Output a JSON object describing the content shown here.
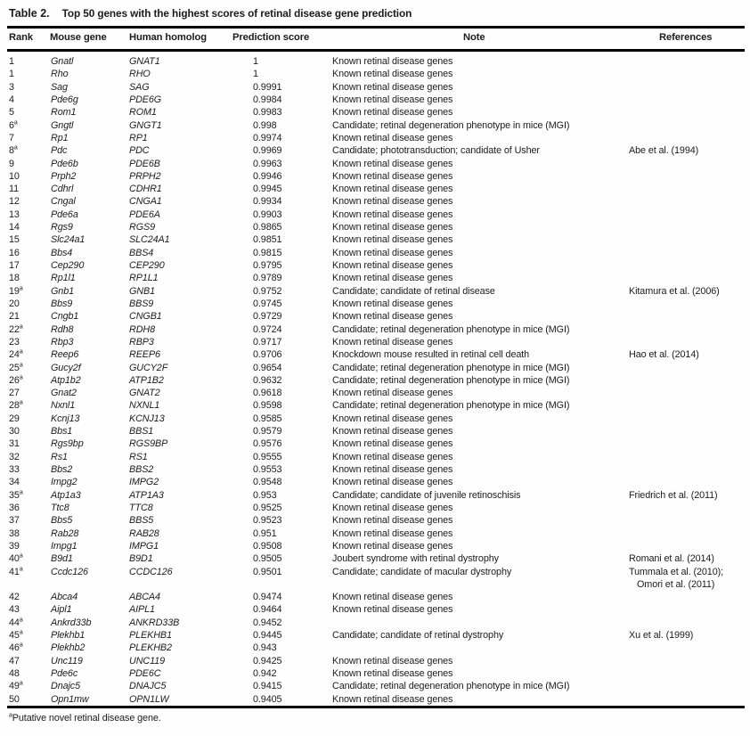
{
  "table": {
    "title_label": "Table 2.",
    "title_caption": "Top 50 genes with the highest scores of retinal disease gene prediction",
    "sup_marker": "a",
    "columns": {
      "rank": "Rank",
      "mouse": "Mouse gene",
      "human": "Human homolog",
      "score": "Prediction score",
      "note": "Note",
      "refs": "References"
    },
    "rows": [
      {
        "rank": "1",
        "sup": false,
        "mouse": "Gnatl",
        "human": "GNAT1",
        "score": "1",
        "note": "Known retinal disease genes",
        "refs": []
      },
      {
        "rank": "1",
        "sup": false,
        "mouse": "Rho",
        "human": "RHO",
        "score": "1",
        "note": "Known retinal disease genes",
        "refs": []
      },
      {
        "rank": "3",
        "sup": false,
        "mouse": "Sag",
        "human": "SAG",
        "score": "0.9991",
        "note": "Known retinal disease genes",
        "refs": []
      },
      {
        "rank": "4",
        "sup": false,
        "mouse": "Pde6g",
        "human": "PDE6G",
        "score": "0.9984",
        "note": "Known retinal disease genes",
        "refs": []
      },
      {
        "rank": "5",
        "sup": false,
        "mouse": "Rom1",
        "human": "ROM1",
        "score": "0.9983",
        "note": "Known retinal disease genes",
        "refs": []
      },
      {
        "rank": "6",
        "sup": true,
        "mouse": "Gngtl",
        "human": "GNGT1",
        "score": "0.998",
        "note": "Candidate; retinal degeneration phenotype in mice (MGI)",
        "refs": []
      },
      {
        "rank": "7",
        "sup": false,
        "mouse": "Rp1",
        "human": "RP1",
        "score": "0.9974",
        "note": "Known retinal disease genes",
        "refs": []
      },
      {
        "rank": "8",
        "sup": true,
        "mouse": "Pdc",
        "human": "PDC",
        "score": "0.9969",
        "note": "Candidate; phototransduction; candidate of Usher",
        "refs": [
          "Abe et al. (1994)"
        ]
      },
      {
        "rank": "9",
        "sup": false,
        "mouse": "Pde6b",
        "human": "PDE6B",
        "score": "0.9963",
        "note": "Known retinal disease genes",
        "refs": []
      },
      {
        "rank": "10",
        "sup": false,
        "mouse": "Prph2",
        "human": "PRPH2",
        "score": "0.9946",
        "note": "Known retinal disease genes",
        "refs": []
      },
      {
        "rank": "11",
        "sup": false,
        "mouse": "Cdhrl",
        "human": "CDHR1",
        "score": "0.9945",
        "note": "Known retinal disease genes",
        "refs": []
      },
      {
        "rank": "12",
        "sup": false,
        "mouse": "Cngal",
        "human": "CNGA1",
        "score": "0.9934",
        "note": "Known retinal disease genes",
        "refs": []
      },
      {
        "rank": "13",
        "sup": false,
        "mouse": "Pde6a",
        "human": "PDE6A",
        "score": "0.9903",
        "note": "Known retinal disease genes",
        "refs": []
      },
      {
        "rank": "14",
        "sup": false,
        "mouse": "Rgs9",
        "human": "RGS9",
        "score": "0.9865",
        "note": "Known retinal disease genes",
        "refs": []
      },
      {
        "rank": "15",
        "sup": false,
        "mouse": "Slc24a1",
        "human": "SLC24A1",
        "score": "0.9851",
        "note": "Known retinal disease genes",
        "refs": []
      },
      {
        "rank": "16",
        "sup": false,
        "mouse": "Bbs4",
        "human": "BBS4",
        "score": "0.9815",
        "note": "Known retinal disease genes",
        "refs": []
      },
      {
        "rank": "17",
        "sup": false,
        "mouse": "Cep290",
        "human": "CEP290",
        "score": "0.9795",
        "note": "Known retinal disease genes",
        "refs": []
      },
      {
        "rank": "18",
        "sup": false,
        "mouse": "Rp1l1",
        "human": "RP1L1",
        "score": "0.9789",
        "note": "Known retinal disease genes",
        "refs": []
      },
      {
        "rank": "19",
        "sup": true,
        "mouse": "Gnb1",
        "human": "GNB1",
        "score": "0.9752",
        "note": "Candidate; candidate of retinal disease",
        "refs": [
          "Kitamura et al. (2006)"
        ]
      },
      {
        "rank": "20",
        "sup": false,
        "mouse": "Bbs9",
        "human": "BBS9",
        "score": "0.9745",
        "note": "Known retinal disease genes",
        "refs": []
      },
      {
        "rank": "21",
        "sup": false,
        "mouse": "Cngb1",
        "human": "CNGB1",
        "score": "0.9729",
        "note": "Known retinal disease genes",
        "refs": []
      },
      {
        "rank": "22",
        "sup": true,
        "mouse": "Rdh8",
        "human": "RDH8",
        "score": "0.9724",
        "note": "Candidate; retinal degeneration phenotype in mice (MGI)",
        "refs": []
      },
      {
        "rank": "23",
        "sup": false,
        "mouse": "Rbp3",
        "human": "RBP3",
        "score": "0.9717",
        "note": "Known retinal disease genes",
        "refs": []
      },
      {
        "rank": "24",
        "sup": true,
        "mouse": "Reep6",
        "human": "REEP6",
        "score": "0.9706",
        "note": "Knockdown mouse resulted in retinal cell death",
        "refs": [
          "Hao et al. (2014)"
        ]
      },
      {
        "rank": "25",
        "sup": true,
        "mouse": "Gucy2f",
        "human": "GUCY2F",
        "score": "0.9654",
        "note": "Candidate; retinal degeneration phenotype in mice (MGI)",
        "refs": []
      },
      {
        "rank": "26",
        "sup": true,
        "mouse": "Atp1b2",
        "human": "ATP1B2",
        "score": "0.9632",
        "note": "Candidate; retinal degeneration phenotype in mice (MGI)",
        "refs": []
      },
      {
        "rank": "27",
        "sup": false,
        "mouse": "Gnat2",
        "human": "GNAT2",
        "score": "0.9618",
        "note": "Known retinal disease genes",
        "refs": []
      },
      {
        "rank": "28",
        "sup": true,
        "mouse": "Nxnl1",
        "human": "NXNL1",
        "score": "0.9598",
        "note": "Candidate; retinal degeneration phenotype in mice (MGI)",
        "refs": []
      },
      {
        "rank": "29",
        "sup": false,
        "mouse": "Kcnj13",
        "human": "KCNJ13",
        "score": "0.9585",
        "note": "Known retinal disease genes",
        "refs": []
      },
      {
        "rank": "30",
        "sup": false,
        "mouse": "Bbs1",
        "human": "BBS1",
        "score": "0.9579",
        "note": "Known retinal disease genes",
        "refs": []
      },
      {
        "rank": "31",
        "sup": false,
        "mouse": "Rgs9bp",
        "human": "RGS9BP",
        "score": "0.9576",
        "note": "Known retinal disease genes",
        "refs": []
      },
      {
        "rank": "32",
        "sup": false,
        "mouse": "Rs1",
        "human": "RS1",
        "score": "0.9555",
        "note": "Known retinal disease genes",
        "refs": []
      },
      {
        "rank": "33",
        "sup": false,
        "mouse": "Bbs2",
        "human": "BBS2",
        "score": "0.9553",
        "note": "Known retinal disease genes",
        "refs": []
      },
      {
        "rank": "34",
        "sup": false,
        "mouse": "Impg2",
        "human": "IMPG2",
        "score": "0.9548",
        "note": "Known retinal disease genes",
        "refs": []
      },
      {
        "rank": "35",
        "sup": true,
        "mouse": "Atp1a3",
        "human": "ATP1A3",
        "score": "0.953",
        "note": "Candidate; candidate of juvenile retinoschisis",
        "refs": [
          "Friedrich et al. (2011)"
        ]
      },
      {
        "rank": "36",
        "sup": false,
        "mouse": "Ttc8",
        "human": "TTC8",
        "score": "0.9525",
        "note": "Known retinal disease genes",
        "refs": []
      },
      {
        "rank": "37",
        "sup": false,
        "mouse": "Bbs5",
        "human": "BBS5",
        "score": "0.9523",
        "note": "Known retinal disease genes",
        "refs": []
      },
      {
        "rank": "38",
        "sup": false,
        "mouse": "Rab28",
        "human": "RAB28",
        "score": "0.951",
        "note": "Known retinal disease genes",
        "refs": []
      },
      {
        "rank": "39",
        "sup": false,
        "mouse": "Impg1",
        "human": "IMPG1",
        "score": "0.9508",
        "note": "Known retinal disease genes",
        "refs": []
      },
      {
        "rank": "40",
        "sup": true,
        "mouse": "B9d1",
        "human": "B9D1",
        "score": "0.9505",
        "note": "Joubert syndrome with retinal dystrophy",
        "refs": [
          "Romani et al. (2014)"
        ]
      },
      {
        "rank": "41",
        "sup": true,
        "mouse": "Ccdc126",
        "human": "CCDC126",
        "score": "0.9501",
        "note": "Candidate; candidate of macular dystrophy",
        "refs": [
          "Tummala et al. (2010);",
          "Omori et al. (2011)"
        ]
      },
      {
        "rank": "42",
        "sup": false,
        "mouse": "Abca4",
        "human": "ABCA4",
        "score": "0.9474",
        "note": "Known retinal disease genes",
        "refs": []
      },
      {
        "rank": "43",
        "sup": false,
        "mouse": "Aipl1",
        "human": "AIPL1",
        "score": "0.9464",
        "note": "Known retinal disease genes",
        "refs": []
      },
      {
        "rank": "44",
        "sup": true,
        "mouse": "Ankrd33b",
        "human": "ANKRD33B",
        "score": "0.9452",
        "note": "",
        "refs": []
      },
      {
        "rank": "45",
        "sup": true,
        "mouse": "Plekhb1",
        "human": "PLEKHB1",
        "score": "0.9445",
        "note": "Candidate; candidate of retinal dystrophy",
        "refs": [
          "Xu et al. (1999)"
        ]
      },
      {
        "rank": "46",
        "sup": true,
        "mouse": "Plekhb2",
        "human": "PLEKHB2",
        "score": "0.943",
        "note": "",
        "refs": []
      },
      {
        "rank": "47",
        "sup": false,
        "mouse": "Unc119",
        "human": "UNC119",
        "score": "0.9425",
        "note": "Known retinal disease genes",
        "refs": []
      },
      {
        "rank": "48",
        "sup": false,
        "mouse": "Pde6c",
        "human": "PDE6C",
        "score": "0.942",
        "note": "Known retinal disease genes",
        "refs": []
      },
      {
        "rank": "49",
        "sup": true,
        "mouse": "Dnajc5",
        "human": "DNAJC5",
        "score": "0.9415",
        "note": "Candidate; retinal degeneration phenotype in mice (MGI)",
        "refs": []
      },
      {
        "rank": "50",
        "sup": false,
        "mouse": "Opn1mw",
        "human": "OPN1LW",
        "score": "0.9405",
        "note": "Known retinal disease genes",
        "refs": []
      }
    ],
    "footnote_sup": "a",
    "footnote_text": "Putative novel retinal disease gene."
  }
}
